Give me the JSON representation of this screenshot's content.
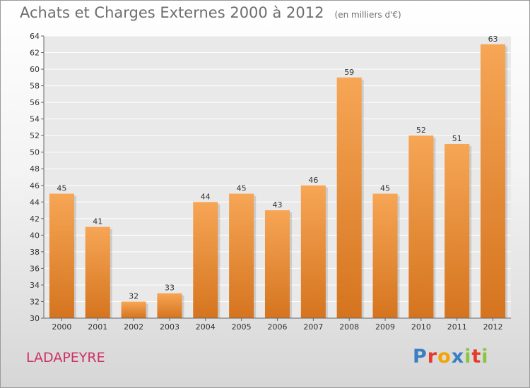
{
  "title": "Achats et Charges Externes 2000 à 2012",
  "unit_note": "(en milliers d'€)",
  "commune": "LADAPEYRE",
  "logo": {
    "text": "Proxiti",
    "letters": [
      {
        "ch": "P",
        "color": "#3a7fc4"
      },
      {
        "ch": "r",
        "color": "#e63a2e"
      },
      {
        "ch": "o",
        "color": "#f2a400"
      },
      {
        "ch": "x",
        "color": "#3a7fc4"
      },
      {
        "ch": "i",
        "color": "#8bc43f"
      },
      {
        "ch": "t",
        "color": "#e63a2e"
      },
      {
        "ch": "i",
        "color": "#8bc43f"
      }
    ]
  },
  "colors": {
    "bar_top": "#f6a655",
    "bar_bottom": "#d5741f",
    "grid": "#ffffff",
    "axis_text": "#333333"
  },
  "chart_data": {
    "type": "bar",
    "categories": [
      "2000",
      "2001",
      "2002",
      "2003",
      "2004",
      "2005",
      "2006",
      "2007",
      "2008",
      "2009",
      "2010",
      "2011",
      "2012"
    ],
    "values": [
      45,
      41,
      32,
      33,
      44,
      45,
      43,
      46,
      59,
      45,
      52,
      51,
      63
    ],
    "ylim": [
      30,
      64
    ],
    "yticks": [
      30,
      32,
      34,
      36,
      38,
      40,
      42,
      44,
      46,
      48,
      50,
      52,
      54,
      56,
      58,
      60,
      62,
      64
    ],
    "grid": true,
    "data_labels": true
  }
}
